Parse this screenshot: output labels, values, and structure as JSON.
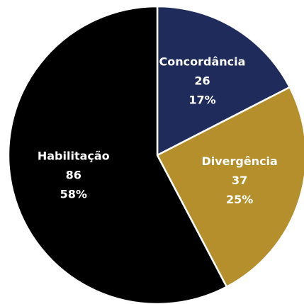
{
  "chart_data": {
    "type": "pie",
    "categories": [
      "Concordância",
      "Divergência",
      "Habilitação"
    ],
    "values": [
      26,
      37,
      86
    ],
    "percent_labels": [
      "17%",
      "25%",
      "58%"
    ],
    "colors": [
      "#1f2b5b",
      "#b58f2b",
      "#000000"
    ]
  }
}
